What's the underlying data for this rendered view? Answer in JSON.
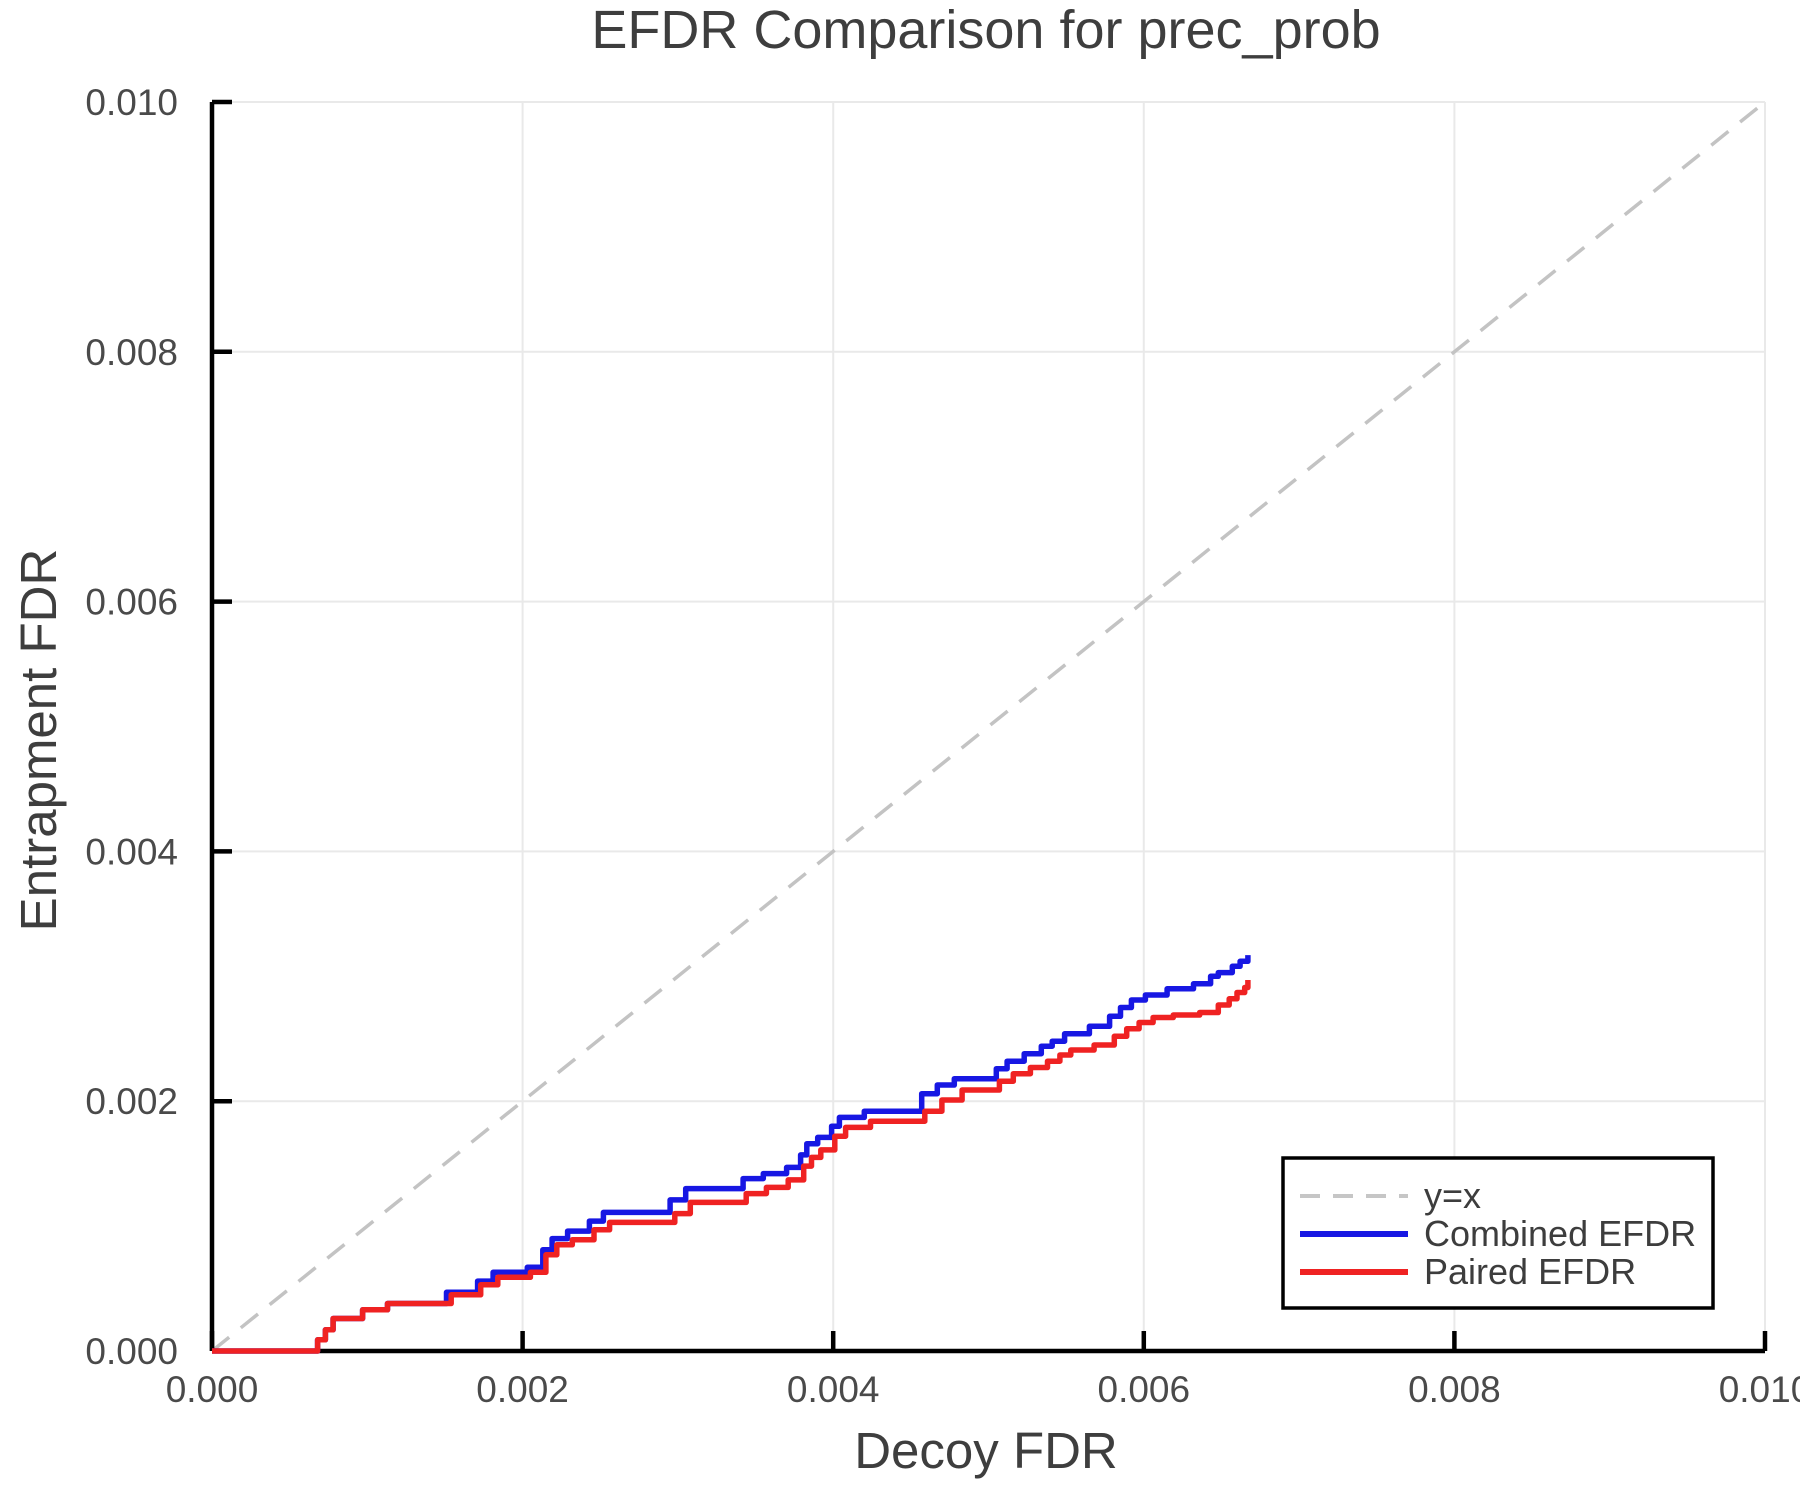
{
  "title": "EFDR Comparison for prec_prob",
  "legend": {
    "items": [
      {
        "label": "y=x",
        "color": "#c6c6c6",
        "style": "dashed"
      },
      {
        "label": "Combined EFDR",
        "color": "#1717e3",
        "style": "solid"
      },
      {
        "label": "Paired EFDR",
        "color": "#ef2222",
        "style": "solid"
      }
    ]
  },
  "chart_data": {
    "type": "line",
    "title": "EFDR Comparison for prec_prob",
    "xlabel": "Decoy FDR",
    "ylabel": "Entrapment FDR",
    "xlim": [
      0.0,
      0.01
    ],
    "ylim": [
      0.0,
      0.01
    ],
    "grid": true,
    "legend_position": "lower right",
    "xticks": {
      "values": [
        0.0,
        0.002,
        0.004,
        0.006,
        0.008,
        0.01
      ],
      "labels": [
        "0.000",
        "0.002",
        "0.004",
        "0.006",
        "0.008",
        "0.010"
      ]
    },
    "yticks": {
      "values": [
        0.0,
        0.002,
        0.004,
        0.006,
        0.008,
        0.01
      ],
      "labels": [
        "0.000",
        "0.002",
        "0.004",
        "0.006",
        "0.008",
        "0.010"
      ]
    },
    "series": [
      {
        "name": "y=x",
        "color": "#c3c3c3",
        "style": "dashed",
        "step": false,
        "points": [
          [
            0.0,
            0.0
          ],
          [
            0.01,
            0.01
          ]
        ]
      },
      {
        "name": "Combined EFDR",
        "color": "#1717e3",
        "style": "solid",
        "step": true,
        "points": [
          [
            0.0,
            0.0
          ],
          [
            0.00068,
            9e-05
          ],
          [
            0.00073,
            0.00017
          ],
          [
            0.00078,
            0.00026
          ],
          [
            0.00097,
            0.00033
          ],
          [
            0.00113,
            0.00038
          ],
          [
            0.00151,
            0.00047
          ],
          [
            0.00171,
            0.00056
          ],
          [
            0.00181,
            0.00063
          ],
          [
            0.00203,
            0.00067
          ],
          [
            0.00213,
            0.00081
          ],
          [
            0.00219,
            0.0009
          ],
          [
            0.00229,
            0.00096
          ],
          [
            0.00243,
            0.00104
          ],
          [
            0.00252,
            0.00111
          ],
          [
            0.00295,
            0.00121
          ],
          [
            0.00305,
            0.0013
          ],
          [
            0.00342,
            0.00138
          ],
          [
            0.00355,
            0.00142
          ],
          [
            0.0037,
            0.00147
          ],
          [
            0.00379,
            0.00157
          ],
          [
            0.00383,
            0.00166
          ],
          [
            0.0039,
            0.00171
          ],
          [
            0.00399,
            0.0018
          ],
          [
            0.00404,
            0.00187
          ],
          [
            0.0042,
            0.00192
          ],
          [
            0.00457,
            0.00206
          ],
          [
            0.00467,
            0.00213
          ],
          [
            0.00478,
            0.00218
          ],
          [
            0.00505,
            0.00226
          ],
          [
            0.00512,
            0.00232
          ],
          [
            0.00523,
            0.00238
          ],
          [
            0.00534,
            0.00244
          ],
          [
            0.00541,
            0.00248
          ],
          [
            0.00549,
            0.00254
          ],
          [
            0.00565,
            0.0026
          ],
          [
            0.00578,
            0.00268
          ],
          [
            0.00585,
            0.00275
          ],
          [
            0.00592,
            0.00281
          ],
          [
            0.00601,
            0.00285
          ],
          [
            0.00615,
            0.0029
          ],
          [
            0.00632,
            0.00294
          ],
          [
            0.00643,
            0.003
          ],
          [
            0.00648,
            0.00303
          ],
          [
            0.00657,
            0.00308
          ],
          [
            0.00662,
            0.00312
          ],
          [
            0.00667,
            0.00317
          ]
        ]
      },
      {
        "name": "Paired EFDR",
        "color": "#ef2222",
        "style": "solid",
        "step": true,
        "points": [
          [
            0.0,
            0.0
          ],
          [
            0.00068,
            9e-05
          ],
          [
            0.00073,
            0.00017
          ],
          [
            0.00078,
            0.00026
          ],
          [
            0.00097,
            0.00033
          ],
          [
            0.00113,
            0.00038
          ],
          [
            0.00154,
            0.00045
          ],
          [
            0.00173,
            0.00053
          ],
          [
            0.00184,
            0.00059
          ],
          [
            0.00205,
            0.00063
          ],
          [
            0.00215,
            0.00077
          ],
          [
            0.00222,
            0.00085
          ],
          [
            0.00232,
            0.00089
          ],
          [
            0.00246,
            0.00097
          ],
          [
            0.00256,
            0.00103
          ],
          [
            0.00298,
            0.0011
          ],
          [
            0.00308,
            0.00119
          ],
          [
            0.00344,
            0.00126
          ],
          [
            0.00357,
            0.00131
          ],
          [
            0.00371,
            0.00137
          ],
          [
            0.00381,
            0.00148
          ],
          [
            0.00386,
            0.00155
          ],
          [
            0.00392,
            0.00161
          ],
          [
            0.00401,
            0.00172
          ],
          [
            0.00408,
            0.00179
          ],
          [
            0.00424,
            0.00184
          ],
          [
            0.00459,
            0.00192
          ],
          [
            0.0047,
            0.00201
          ],
          [
            0.00483,
            0.00209
          ],
          [
            0.00507,
            0.00216
          ],
          [
            0.00516,
            0.00222
          ],
          [
            0.00527,
            0.00227
          ],
          [
            0.00538,
            0.00232
          ],
          [
            0.00546,
            0.00237
          ],
          [
            0.00553,
            0.00241
          ],
          [
            0.00568,
            0.00245
          ],
          [
            0.00581,
            0.00252
          ],
          [
            0.00589,
            0.00258
          ],
          [
            0.00597,
            0.00263
          ],
          [
            0.00606,
            0.00267
          ],
          [
            0.00619,
            0.00269
          ],
          [
            0.00636,
            0.00271
          ],
          [
            0.00648,
            0.00277
          ],
          [
            0.00655,
            0.00282
          ],
          [
            0.0066,
            0.00287
          ],
          [
            0.00665,
            0.00291
          ],
          [
            0.00667,
            0.00297
          ]
        ]
      }
    ]
  }
}
